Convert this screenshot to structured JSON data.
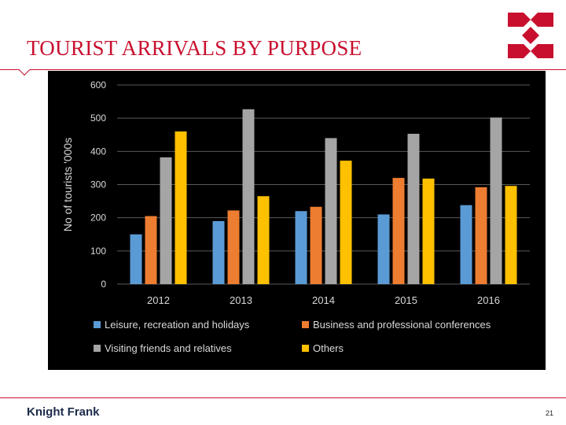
{
  "slide": {
    "title": "TOURIST ARRIVALS BY PURPOSE",
    "brand": "Knight Frank",
    "page_number": "21",
    "accent_color": "#c8102e",
    "logo_icon": "red-diamond-cross-logo"
  },
  "chart_data": {
    "type": "bar",
    "title": "",
    "xlabel": "",
    "ylabel": "No of tourists '000s",
    "ylim": [
      0,
      600
    ],
    "yticks": [
      0,
      100,
      200,
      300,
      400,
      500,
      600
    ],
    "grid": true,
    "legend_position": "bottom",
    "background": "#000000",
    "categories": [
      "2012",
      "2013",
      "2014",
      "2015",
      "2016"
    ],
    "series": [
      {
        "name": "Leisure, recreation and holidays",
        "color": "#5b9bd5",
        "values": [
          150,
          190,
          220,
          210,
          238
        ]
      },
      {
        "name": "Business and professional conferences",
        "color": "#ed7d31",
        "values": [
          205,
          222,
          233,
          320,
          292
        ]
      },
      {
        "name": "Visiting friends and relatives",
        "color": "#a5a5a5",
        "values": [
          382,
          527,
          440,
          453,
          502
        ]
      },
      {
        "name": "Others",
        "color": "#ffc000",
        "values": [
          460,
          265,
          372,
          318,
          296
        ]
      }
    ]
  }
}
